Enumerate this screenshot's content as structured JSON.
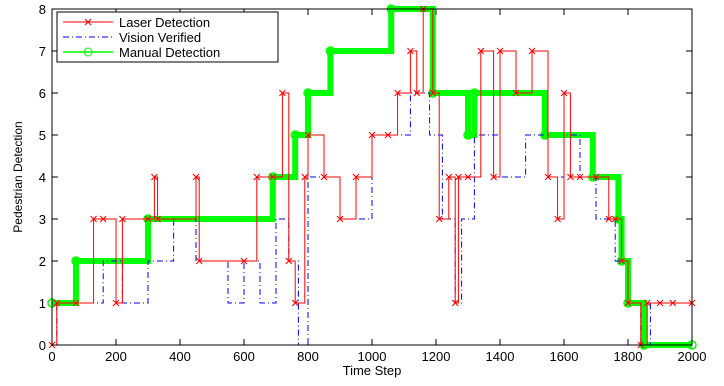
{
  "chart_data": {
    "type": "step",
    "xlabel": "Time Step",
    "ylabel": "Pedestrian Detection",
    "xlim": [
      0,
      2000
    ],
    "ylim": [
      0,
      8
    ],
    "xticks": [
      0,
      200,
      400,
      600,
      800,
      1000,
      1200,
      1400,
      1600,
      1800,
      2000
    ],
    "yticks": [
      0,
      1,
      2,
      3,
      4,
      5,
      6,
      7,
      8
    ],
    "legend": "upper left",
    "grid": false,
    "series": [
      {
        "name": "Laser Detection",
        "color": "#ff0000",
        "marker": "x",
        "x": [
          0,
          15,
          75,
          130,
          160,
          200,
          220,
          300,
          320,
          330,
          450,
          460,
          600,
          640,
          690,
          720,
          740,
          760,
          790,
          800,
          850,
          900,
          950,
          1000,
          1050,
          1080,
          1120,
          1140,
          1160,
          1190,
          1210,
          1240,
          1260,
          1270,
          1300,
          1340,
          1380,
          1400,
          1450,
          1500,
          1550,
          1580,
          1600,
          1620,
          1650,
          1700,
          1740,
          1760,
          1780,
          1800,
          1840,
          1860,
          1900,
          1940,
          2000
        ],
        "values": [
          0,
          1,
          1,
          3,
          3,
          1,
          3,
          3,
          4,
          3,
          4,
          2,
          2,
          4,
          4,
          6,
          2,
          1,
          4,
          5,
          4,
          3,
          4,
          5,
          5,
          6,
          7,
          6,
          8,
          6,
          3,
          4,
          1,
          4,
          4,
          7,
          4,
          7,
          6,
          7,
          4,
          3,
          6,
          4,
          4,
          4,
          3,
          3,
          2,
          1,
          0,
          1,
          1,
          1,
          1
        ]
      },
      {
        "name": "Vision Verified",
        "color": "#0000ff",
        "marker": "none",
        "x": [
          0,
          15,
          75,
          160,
          220,
          300,
          380,
          450,
          550,
          600,
          650,
          700,
          740,
          770,
          800,
          900,
          1000,
          1060,
          1120,
          1180,
          1220,
          1260,
          1280,
          1320,
          1400,
          1480,
          1550,
          1600,
          1650,
          1700,
          1760,
          1800,
          1840,
          1870,
          2000
        ],
        "values": [
          0,
          1,
          1,
          2,
          1,
          2,
          3,
          2,
          1,
          2,
          1,
          3,
          2,
          0,
          4,
          3,
          5,
          5,
          6,
          5,
          3,
          1,
          3,
          5,
          4,
          5,
          4,
          5,
          4,
          3,
          2,
          1,
          0,
          1,
          1
        ]
      },
      {
        "name": "Manual Detection",
        "color": "#00ff00",
        "marker": "o",
        "x": [
          0,
          75,
          300,
          690,
          760,
          800,
          870,
          1060,
          1190,
          1300,
          1320,
          1540,
          1690,
          1770,
          1780,
          1800,
          1850,
          2000
        ],
        "values": [
          1,
          2,
          3,
          4,
          5,
          6,
          7,
          8,
          6,
          5,
          6,
          5,
          4,
          3,
          2,
          1,
          0,
          0
        ]
      }
    ]
  }
}
